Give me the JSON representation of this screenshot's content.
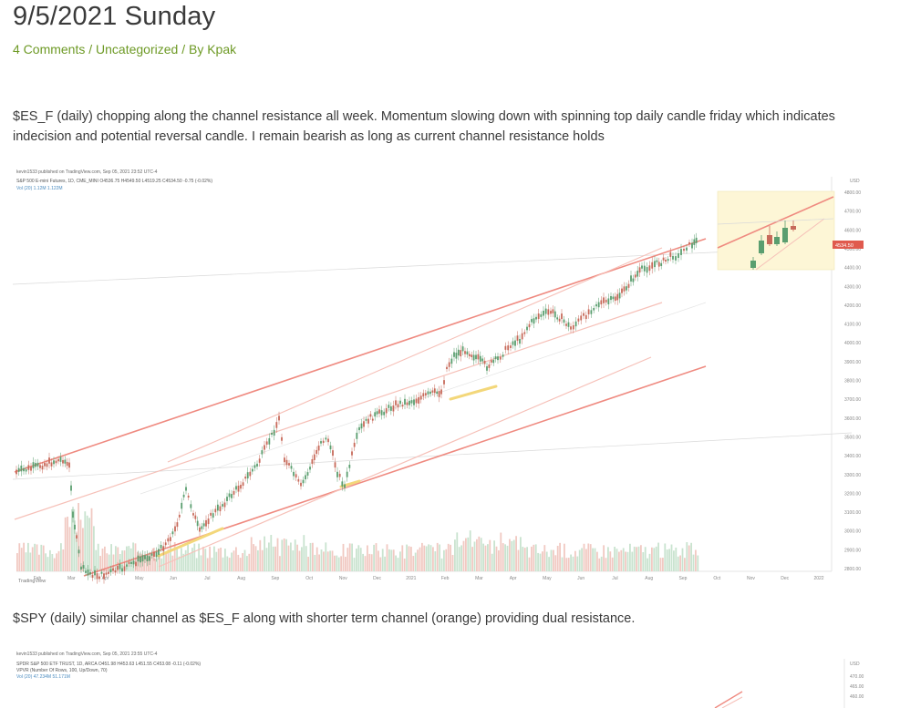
{
  "post": {
    "title": "9/5/2021 Sunday",
    "comments": "4 Comments",
    "separator1": " / ",
    "category": "Uncategorized",
    "separator2": " / By ",
    "author": "Kpak"
  },
  "paragraphs": {
    "p1": "$ES_F (daily) chopping along the channel resistance all week. Momentum slowing down with spinning top daily candle friday which indicates indecision and potential reversal candle. I remain bearish as long as current channel resistance holds",
    "p2": "$SPY (daily) similar channel as $ES_F along with shorter term channel (orange) providing dual resistance."
  },
  "chart1": {
    "publish_line": "kevin1533 published on TradingView.com, Sep 05, 2021 23:52 UTC-4",
    "ohlc_line": "S&P 500 E-mini Futures, 1D, CME_MINI  O4536.75  H4549.50  L4519.25  C4534.50  -0.75 (-0.02%)",
    "vol_line": "Vol (20)  1.12M  1.122M",
    "price_badge": "4534.50",
    "currency": "USD",
    "brand": "TradingView",
    "y_ticks": [
      "4800.00",
      "4700.00",
      "4600.00",
      "4500.00",
      "4400.00",
      "4300.00",
      "4200.00",
      "4100.00",
      "4000.00",
      "3900.00",
      "3800.00",
      "3700.00",
      "3600.00",
      "3500.00",
      "3400.00",
      "3300.00",
      "3200.00",
      "3100.00",
      "3000.00",
      "2900.00",
      "2800.00"
    ],
    "x_ticks": [
      "Feb",
      "Mar",
      "Apr",
      "May",
      "Jun",
      "Jul",
      "Aug",
      "Sep",
      "Oct",
      "Nov",
      "Dec",
      "2021",
      "Feb",
      "Mar",
      "Apr",
      "May",
      "Jun",
      "Jul",
      "Aug",
      "Sep",
      "Oct",
      "Nov",
      "Dec",
      "2022"
    ]
  },
  "chart2": {
    "publish_line": "kevin1533 published on TradingView.com, Sep 05, 2021 23:55 UTC-4",
    "ohlc_line": "SPDR S&P 500 ETF TRUST, 1D, ARCA  O451.98  H453.63  L451.55  C453.08  -0.11 (-0.02%)",
    "vol_line": "VPVR (Number Of Rows, 100, Up/Down, 70)",
    "vol_line2": "Vol (20)  47.234M  51.171M",
    "currency": "USD",
    "y_ticks": [
      "470.00",
      "465.00",
      "460.00"
    ]
  },
  "colors": {
    "meta_green": "#6e9a26",
    "channel_red": "#ef8a80",
    "candle_green": "#5a9e6f",
    "candle_red": "#c76a5a",
    "inset_bg": "#fdf6d6"
  }
}
